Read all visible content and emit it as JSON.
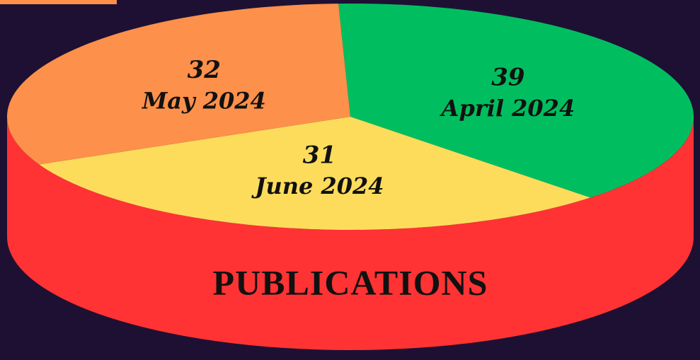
{
  "chart_data": {
    "type": "pie",
    "title": "PUBLICATIONS",
    "categories": [
      "April 2024",
      "June 2024",
      "May 2024"
    ],
    "values": [
      39,
      31,
      32
    ],
    "colors": [
      "#00be5f",
      "#fddc5c",
      "#fd904a"
    ],
    "side_color": "#ff3333"
  }
}
